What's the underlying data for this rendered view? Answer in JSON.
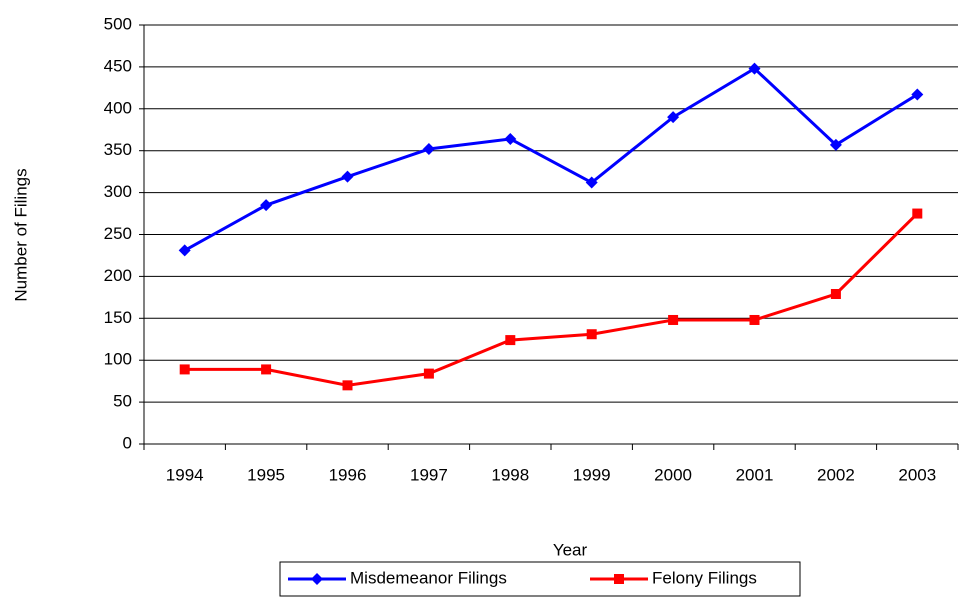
{
  "chart_data": {
    "type": "line",
    "x_label": "Year",
    "y_label": "Number of Filings",
    "categories": [
      "1994",
      "1995",
      "1996",
      "1997",
      "1998",
      "1999",
      "2000",
      "2001",
      "2002",
      "2003"
    ],
    "series": [
      {
        "name": "Misdemeanor Filings",
        "color": "#0000ff",
        "marker": "diamond",
        "values": [
          231,
          285,
          319,
          352,
          364,
          312,
          390,
          448,
          357,
          417
        ]
      },
      {
        "name": "Felony Filings",
        "color": "#ff0000",
        "marker": "square",
        "values": [
          89,
          89,
          70,
          84,
          124,
          131,
          148,
          148,
          179,
          275
        ]
      }
    ],
    "ylim": [
      0,
      500
    ],
    "yticks": [
      0,
      50,
      100,
      150,
      200,
      250,
      300,
      350,
      400,
      450,
      500
    ],
    "grid": true,
    "legend": "bottom"
  }
}
